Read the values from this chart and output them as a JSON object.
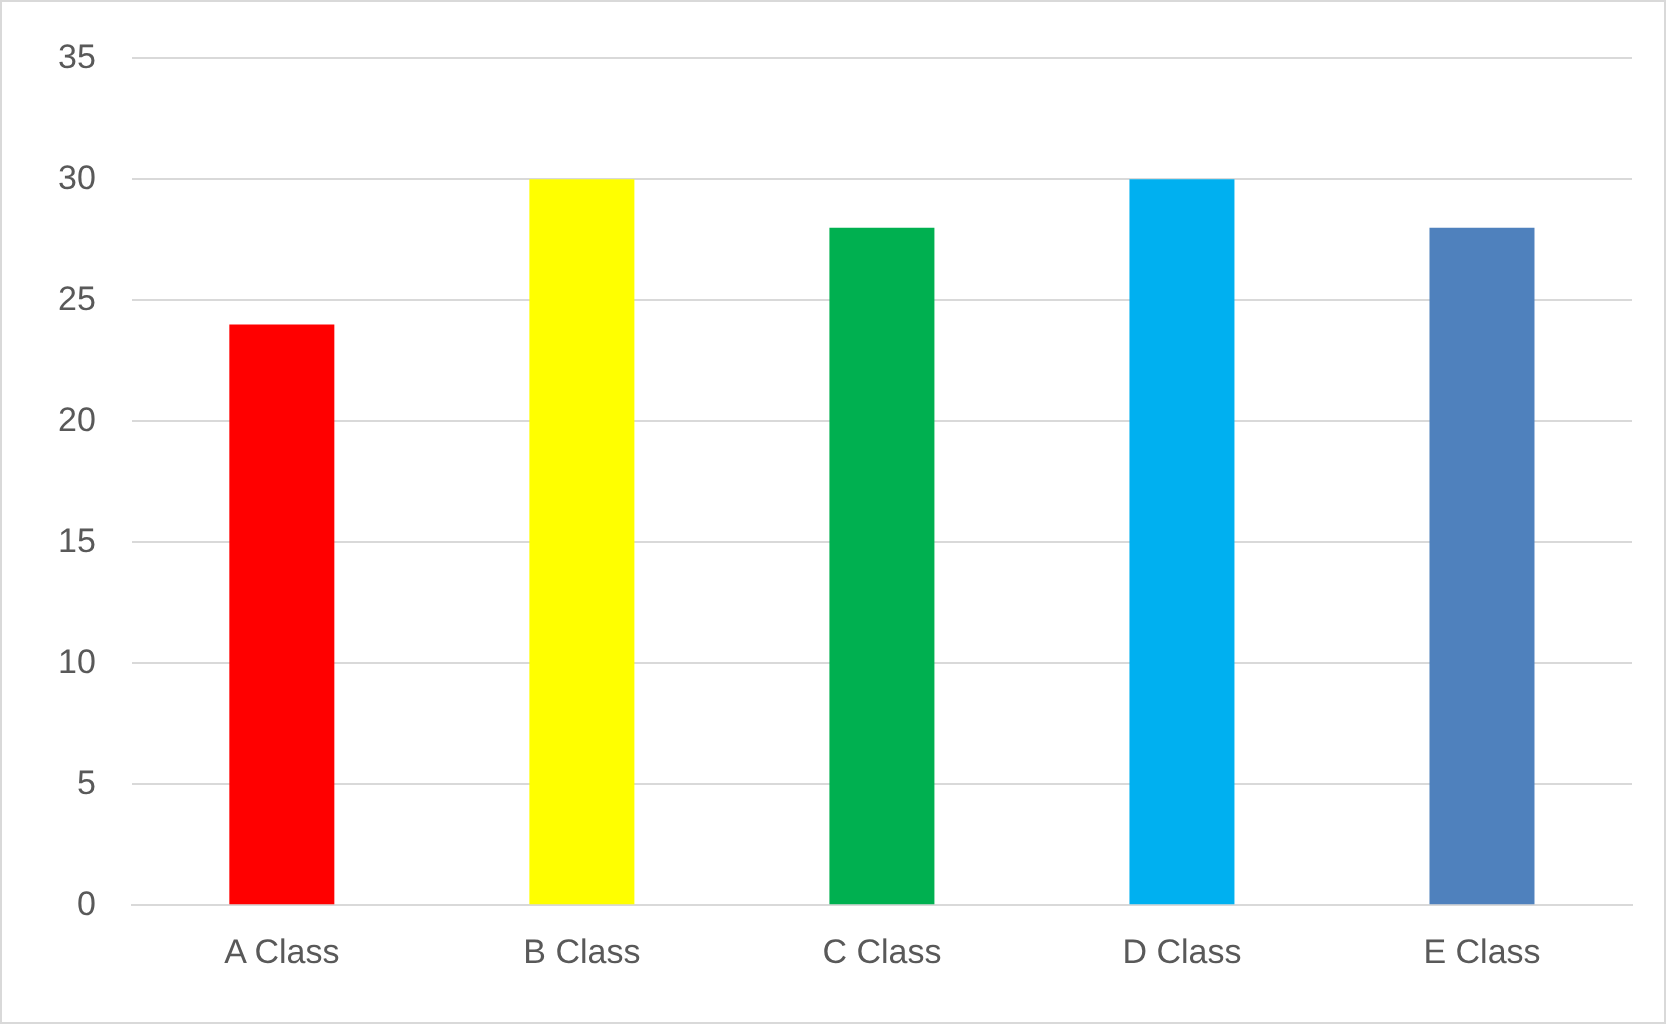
{
  "chart_data": {
    "type": "bar",
    "categories": [
      "A Class",
      "B Class",
      "C Class",
      "D Class",
      "E Class"
    ],
    "values": [
      24,
      30,
      28,
      30,
      28
    ],
    "colors": [
      "#ff0000",
      "#ffff00",
      "#00b050",
      "#00b0f0",
      "#4f81bd"
    ],
    "ylim": [
      0,
      35
    ],
    "yticks": [
      0,
      5,
      10,
      15,
      20,
      25,
      30,
      35
    ],
    "grid": "y"
  }
}
